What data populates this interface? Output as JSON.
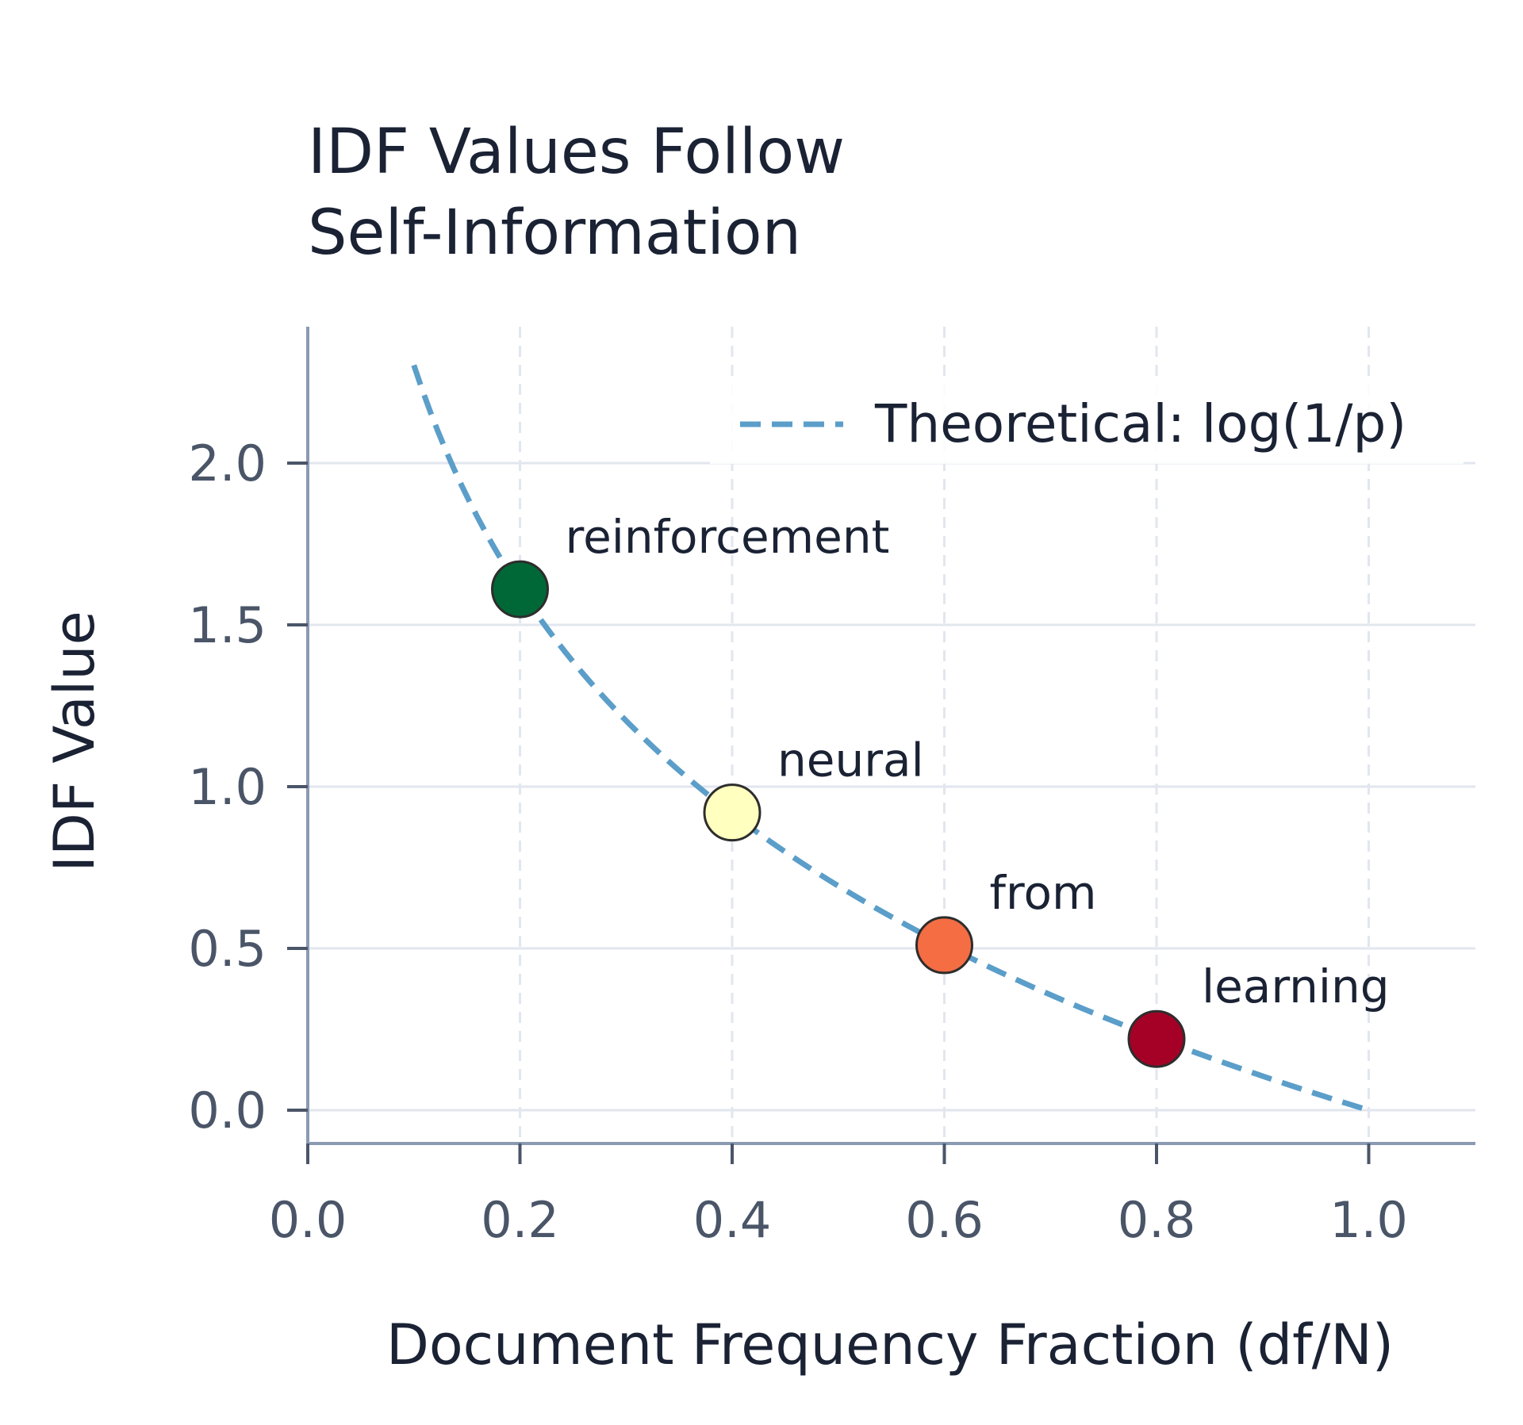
{
  "chart_data": {
    "type": "scatter",
    "title_lines": [
      "IDF Values Follow",
      "Self-Information"
    ],
    "xlabel": "Document Frequency Fraction (df/N)",
    "ylabel": "IDF Value",
    "xlim": [
      0.0,
      1.1
    ],
    "ylim": [
      -0.12,
      2.42
    ],
    "x_ticks": [
      0.0,
      0.2,
      0.4,
      0.6,
      0.8,
      1.0
    ],
    "x_tick_labels": [
      "0.0",
      "0.2",
      "0.4",
      "0.6",
      "0.8",
      "1.0"
    ],
    "y_ticks": [
      0.0,
      0.5,
      1.0,
      1.5,
      2.0
    ],
    "y_tick_labels": [
      "0.0",
      "0.5",
      "1.0",
      "1.5",
      "2.0"
    ],
    "grid": true,
    "legend": {
      "placement": "top-right",
      "entries": [
        {
          "label": "Theoretical: log(1/p)",
          "style": "dashed-line",
          "color": "#5b9ec9"
        }
      ]
    },
    "theoretical_curve": {
      "name": "Theoretical: log(1/p)",
      "x_start": 0.1,
      "x_end": 1.0,
      "color": "#5b9ec9"
    },
    "points": [
      {
        "label": "reinforcement",
        "x": 0.2,
        "y": 1.61,
        "color": "#006837"
      },
      {
        "label": "neural",
        "x": 0.4,
        "y": 0.92,
        "color": "#ffffbf"
      },
      {
        "label": "from",
        "x": 0.6,
        "y": 0.51,
        "color": "#f46d43"
      },
      {
        "label": "learning",
        "x": 0.8,
        "y": 0.22,
        "color": "#a50026"
      }
    ]
  }
}
